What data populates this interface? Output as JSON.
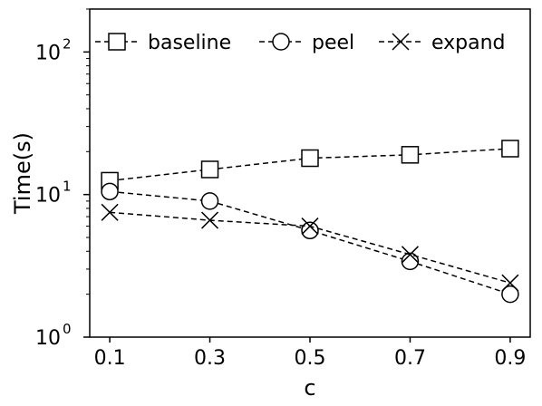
{
  "chart_data": {
    "type": "line",
    "x": [
      0.1,
      0.3,
      0.5,
      0.7,
      0.9
    ],
    "x_ticks": [
      "0.1",
      "0.3",
      "0.5",
      "0.7",
      "0.9"
    ],
    "xlabel": "c",
    "ylabel": "Time(s)",
    "yscale": "log",
    "ylim": [
      1,
      200
    ],
    "y_ticks": [
      {
        "value": 1,
        "base": "10",
        "exp": "0"
      },
      {
        "value": 10,
        "base": "10",
        "exp": "1"
      },
      {
        "value": 100,
        "base": "10",
        "exp": "2"
      }
    ],
    "grid": false,
    "legend_position": "top",
    "series": [
      {
        "name": "baseline",
        "marker": "square",
        "values": [
          12.5,
          15,
          18,
          19,
          21
        ]
      },
      {
        "name": "peel",
        "marker": "circle",
        "values": [
          10.5,
          9,
          5.6,
          3.4,
          2.0
        ]
      },
      {
        "name": "expand",
        "marker": "x",
        "values": [
          7.5,
          6.6,
          6.0,
          3.8,
          2.4
        ]
      }
    ]
  }
}
